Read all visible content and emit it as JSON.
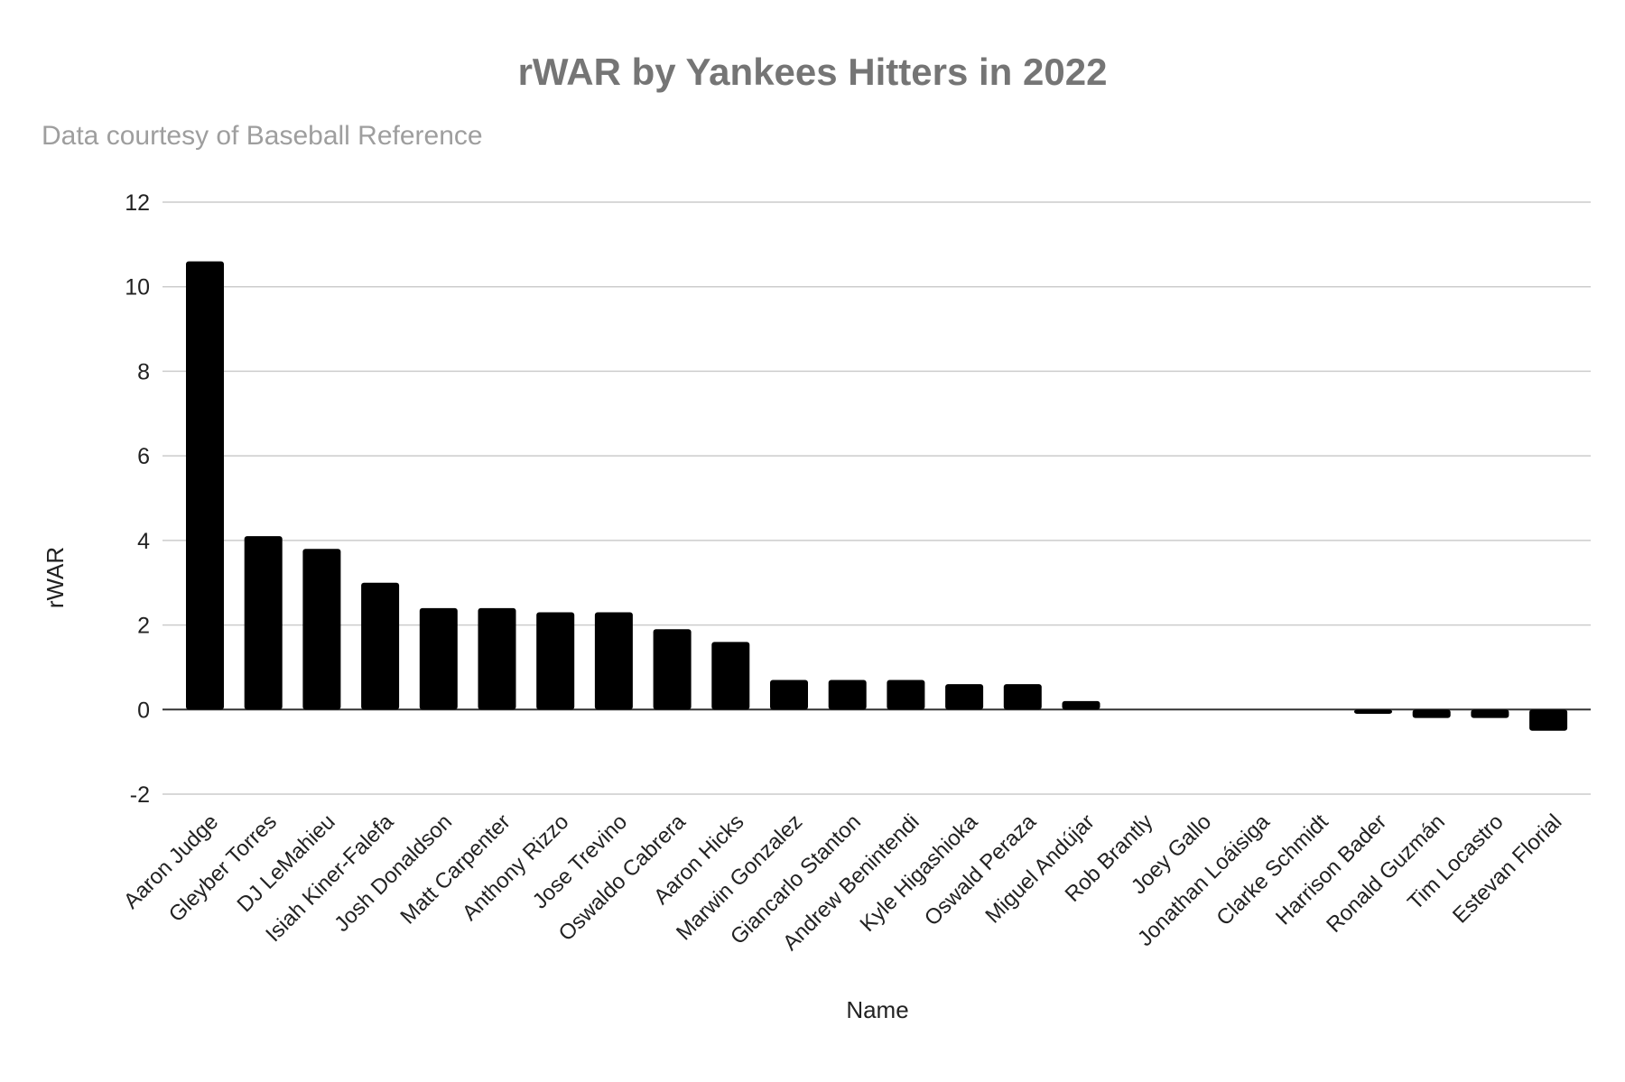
{
  "chart_data": {
    "type": "bar",
    "title": "rWAR by Yankees Hitters in 2022",
    "subtitle": "Data courtesy of Baseball Reference",
    "xlabel": "Name",
    "ylabel": "rWAR",
    "ylim": [
      -2,
      12
    ],
    "yticks": [
      12,
      10,
      8,
      6,
      4,
      2,
      0,
      -2
    ],
    "grid": true,
    "legend": "none",
    "bar_color": "#000000",
    "grid_color": "#cccccc",
    "categories": [
      "Aaron Judge",
      "Gleyber Torres",
      "DJ LeMahieu",
      "Isiah Kiner-Falefa",
      "Josh Donaldson",
      "Matt Carpenter",
      "Anthony Rizzo",
      "Jose Trevino",
      "Oswaldo Cabrera",
      "Aaron Hicks",
      "Marwin Gonzalez",
      "Giancarlo Stanton",
      "Andrew Benintendi",
      "Kyle Higashioka",
      "Oswald Peraza",
      "Miguel Andújar",
      "Rob Brantly",
      "Joey Gallo",
      "Jonathan Loáisiga",
      "Clarke Schmidt",
      "Harrison Bader",
      "Ronald Guzmán",
      "Tim Locastro",
      "Estevan Florial"
    ],
    "values": [
      10.6,
      4.1,
      3.8,
      3.0,
      2.4,
      2.4,
      2.3,
      2.3,
      1.9,
      1.6,
      0.7,
      0.7,
      0.7,
      0.6,
      0.6,
      0.2,
      0.0,
      0.0,
      0.0,
      0.0,
      -0.1,
      -0.2,
      -0.2,
      -0.5
    ]
  }
}
